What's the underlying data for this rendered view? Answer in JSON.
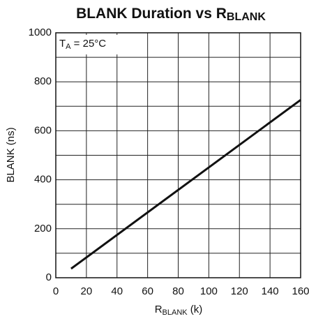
{
  "chart_data": {
    "type": "line",
    "title": {
      "main": "BLANK Duration vs R",
      "sub": "BLANK"
    },
    "xlabel": {
      "main": "R",
      "sub": "BLANK",
      "tail": " (k)"
    },
    "ylabel": "BLANK (ns)",
    "annotation": {
      "main": "T",
      "sub": "A",
      "tail": " = 25°C"
    },
    "x": [
      10,
      160
    ],
    "series": [
      {
        "name": "BLANK",
        "color": "#111111",
        "values": [
          37,
          726
        ]
      }
    ],
    "xlim": [
      0,
      160
    ],
    "xticks": [
      0,
      20,
      40,
      60,
      80,
      100,
      120,
      140,
      160
    ],
    "ylim": [
      0,
      1000
    ],
    "yticks": [
      0,
      200,
      400,
      600,
      800,
      1000
    ],
    "ygrid": [
      100,
      300,
      500,
      700,
      900
    ],
    "grid": true
  }
}
